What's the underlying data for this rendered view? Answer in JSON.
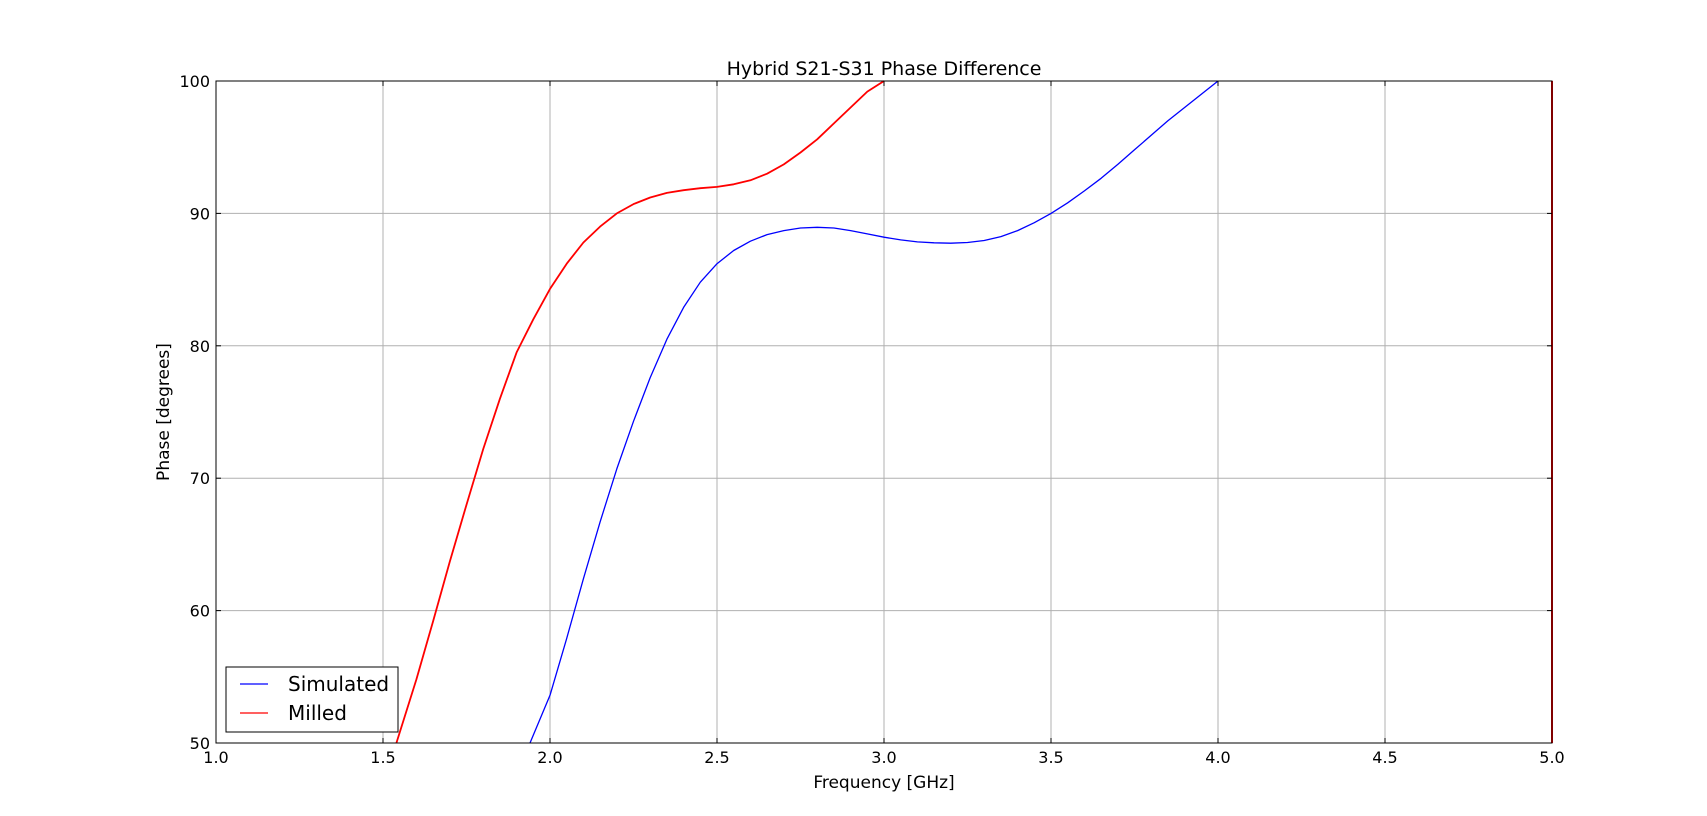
{
  "chart_data": {
    "type": "line",
    "title": "Hybrid S21-S31 Phase Difference",
    "xlabel": "Frequency [GHz]",
    "ylabel": "Phase [degrees]",
    "xlim": [
      1.0,
      5.0
    ],
    "ylim": [
      50,
      100
    ],
    "xticks": [
      1.0,
      1.5,
      2.0,
      2.5,
      3.0,
      3.5,
      4.0,
      4.5,
      5.0
    ],
    "xtick_labels": [
      "1.0",
      "1.5",
      "2.0",
      "2.5",
      "3.0",
      "3.5",
      "4.0",
      "4.5",
      "5.0"
    ],
    "yticks": [
      50,
      60,
      70,
      80,
      90,
      100
    ],
    "ytick_labels": [
      "50",
      "60",
      "70",
      "80",
      "90",
      "100"
    ],
    "grid": true,
    "legend_position": "lower-left",
    "series": [
      {
        "name": "Simulated",
        "color": "#0000ff",
        "points": [
          [
            1.94,
            50.0
          ],
          [
            2.0,
            53.6
          ],
          [
            2.05,
            57.9
          ],
          [
            2.1,
            62.4
          ],
          [
            2.15,
            66.7
          ],
          [
            2.2,
            70.7
          ],
          [
            2.25,
            74.3
          ],
          [
            2.3,
            77.6
          ],
          [
            2.35,
            80.5
          ],
          [
            2.4,
            82.9
          ],
          [
            2.45,
            84.8
          ],
          [
            2.5,
            86.2
          ],
          [
            2.55,
            87.2
          ],
          [
            2.6,
            87.9
          ],
          [
            2.65,
            88.4
          ],
          [
            2.7,
            88.7
          ],
          [
            2.75,
            88.9
          ],
          [
            2.8,
            88.95
          ],
          [
            2.85,
            88.9
          ],
          [
            2.9,
            88.7
          ],
          [
            2.95,
            88.45
          ],
          [
            3.0,
            88.2
          ],
          [
            3.05,
            88.0
          ],
          [
            3.1,
            87.85
          ],
          [
            3.15,
            87.78
          ],
          [
            3.2,
            87.75
          ],
          [
            3.25,
            87.8
          ],
          [
            3.3,
            87.95
          ],
          [
            3.35,
            88.25
          ],
          [
            3.4,
            88.7
          ],
          [
            3.45,
            89.3
          ],
          [
            3.5,
            90.0
          ],
          [
            3.55,
            90.8
          ],
          [
            3.6,
            91.7
          ],
          [
            3.65,
            92.65
          ],
          [
            3.7,
            93.7
          ],
          [
            3.75,
            94.8
          ],
          [
            3.8,
            95.9
          ],
          [
            3.85,
            97.0
          ],
          [
            3.9,
            98.0
          ],
          [
            3.95,
            99.0
          ],
          [
            4.0,
            100.0
          ]
        ]
      },
      {
        "name": "Milled",
        "color": "#ff0000",
        "points": [
          [
            1.54,
            50.0
          ],
          [
            1.6,
            54.8
          ],
          [
            1.65,
            59.2
          ],
          [
            1.7,
            63.7
          ],
          [
            1.75,
            68.0
          ],
          [
            1.8,
            72.2
          ],
          [
            1.85,
            76.0
          ],
          [
            1.9,
            79.5
          ],
          [
            1.95,
            82.0
          ],
          [
            2.0,
            84.3
          ],
          [
            2.05,
            86.2
          ],
          [
            2.1,
            87.8
          ],
          [
            2.15,
            89.0
          ],
          [
            2.2,
            90.0
          ],
          [
            2.25,
            90.7
          ],
          [
            2.3,
            91.2
          ],
          [
            2.35,
            91.55
          ],
          [
            2.4,
            91.75
          ],
          [
            2.45,
            91.9
          ],
          [
            2.5,
            92.0
          ],
          [
            2.55,
            92.2
          ],
          [
            2.6,
            92.5
          ],
          [
            2.65,
            93.0
          ],
          [
            2.7,
            93.7
          ],
          [
            2.75,
            94.6
          ],
          [
            2.8,
            95.6
          ],
          [
            2.85,
            96.8
          ],
          [
            2.9,
            98.0
          ],
          [
            2.95,
            99.2
          ],
          [
            3.0,
            100.0
          ]
        ]
      }
    ]
  }
}
